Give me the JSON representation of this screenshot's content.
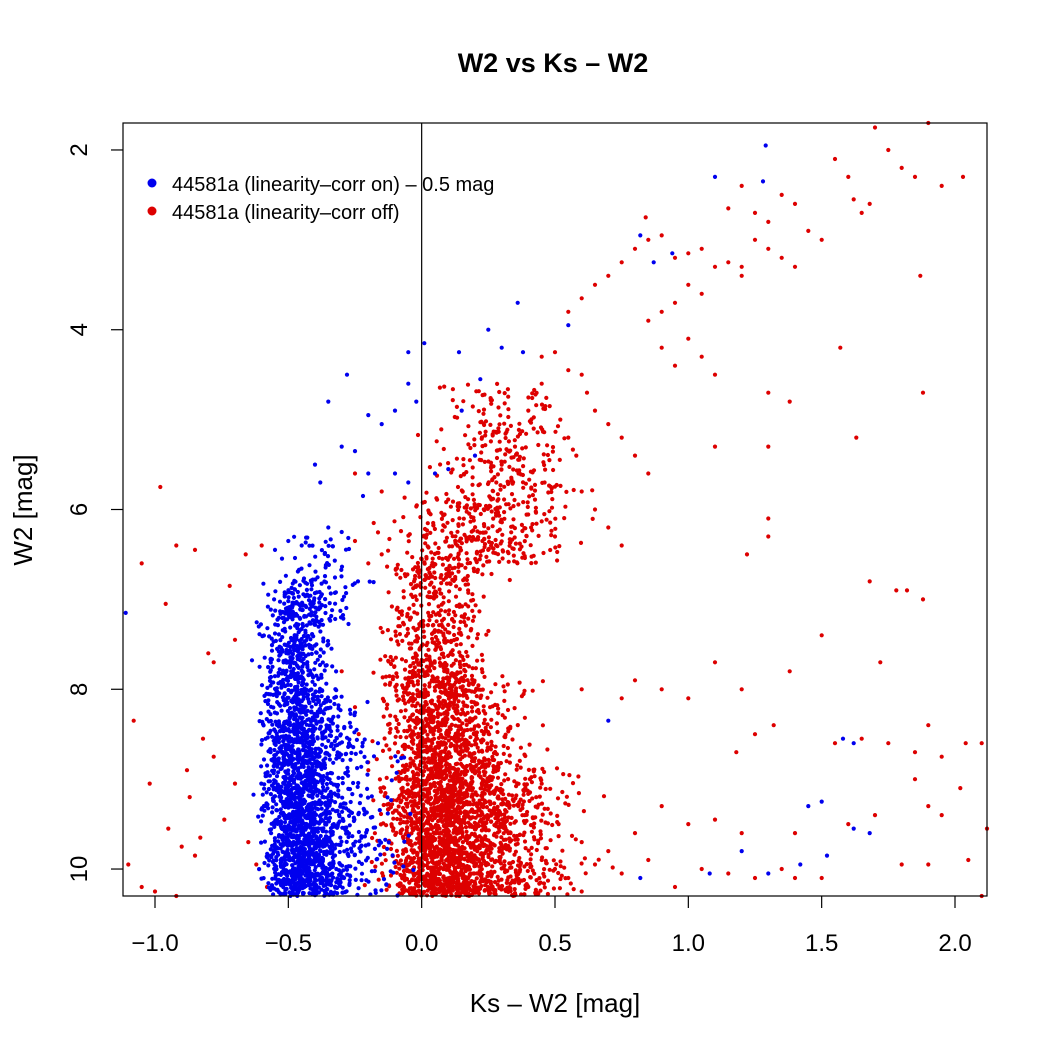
{
  "chart_data": {
    "type": "scatter",
    "title": "W2 vs Ks – W2",
    "xlabel": "Ks – W2 [mag]",
    "ylabel": "W2 [mag]",
    "xlim": [
      -1.12,
      2.12
    ],
    "ylim": [
      10.3,
      1.7
    ],
    "y_inverted": true,
    "x_ticks": [
      -1.0,
      -0.5,
      0.0,
      0.5,
      1.0,
      1.5,
      2.0
    ],
    "x_tick_labels": [
      "−1.0",
      "−0.5",
      "0.0",
      "0.5",
      "1.0",
      "1.5",
      "2.0"
    ],
    "y_ticks": [
      2,
      4,
      6,
      8,
      10
    ],
    "y_tick_labels": [
      "2",
      "4",
      "6",
      "8",
      "10"
    ],
    "reference_line_x": 0.0,
    "grid": false,
    "legend_position": "top-left",
    "series": [
      {
        "name": "44581a (linearity–corr on) – 0.5 mag",
        "color": "#0000ee",
        "points": [
          [
            -1.11,
            7.15
          ],
          [
            1.1,
            2.3
          ],
          [
            1.29,
            1.95
          ],
          [
            1.28,
            2.35
          ],
          [
            0.82,
            2.95
          ],
          [
            0.87,
            3.25
          ],
          [
            0.94,
            3.15
          ],
          [
            0.36,
            3.7
          ],
          [
            0.55,
            3.95
          ],
          [
            0.25,
            4.0
          ],
          [
            -0.05,
            4.25
          ],
          [
            0.01,
            4.15
          ],
          [
            0.14,
            4.25
          ],
          [
            0.22,
            4.55
          ],
          [
            0.38,
            4.25
          ],
          [
            0.3,
            4.2
          ],
          [
            -0.28,
            4.5
          ],
          [
            -0.35,
            4.8
          ],
          [
            -0.05,
            4.6
          ],
          [
            -0.02,
            4.8
          ],
          [
            0.15,
            4.9
          ],
          [
            0.2,
            5.4
          ],
          [
            0.05,
            5.6
          ],
          [
            0.1,
            5.55
          ],
          [
            -0.2,
            4.95
          ],
          [
            -0.15,
            5.05
          ],
          [
            -0.1,
            4.9
          ],
          [
            -0.3,
            5.3
          ],
          [
            -0.25,
            5.35
          ],
          [
            -0.4,
            5.5
          ],
          [
            -0.38,
            5.7
          ],
          [
            -0.2,
            5.6
          ],
          [
            -0.1,
            5.6
          ],
          [
            -0.05,
            5.7
          ],
          [
            -0.22,
            5.85
          ],
          [
            -0.45,
            6.4
          ],
          [
            -0.5,
            6.35
          ],
          [
            -0.55,
            6.45
          ],
          [
            -0.35,
            6.2
          ],
          [
            -0.3,
            6.25
          ],
          [
            0.7,
            8.35
          ],
          [
            1.58,
            8.55
          ],
          [
            1.62,
            8.6
          ],
          [
            1.45,
            9.3
          ],
          [
            1.5,
            9.25
          ],
          [
            1.62,
            9.55
          ],
          [
            1.68,
            9.6
          ],
          [
            1.52,
            9.85
          ],
          [
            1.42,
            9.95
          ],
          [
            1.2,
            9.8
          ],
          [
            1.08,
            10.05
          ],
          [
            1.3,
            10.05
          ],
          [
            0.82,
            10.1
          ]
        ]
      },
      {
        "name": "44581a (linearity–corr off)",
        "color": "#dd0000",
        "points": [
          [
            -1.05,
            6.6
          ],
          [
            -0.98,
            5.75
          ],
          [
            -0.92,
            6.4
          ],
          [
            -0.85,
            6.45
          ],
          [
            -0.8,
            7.6
          ],
          [
            -0.78,
            7.7
          ],
          [
            -0.7,
            7.45
          ],
          [
            -0.72,
            6.85
          ],
          [
            -0.66,
            6.5
          ],
          [
            -0.6,
            6.4
          ],
          [
            -1.08,
            8.35
          ],
          [
            -1.02,
            9.05
          ],
          [
            -0.96,
            7.05
          ],
          [
            -0.88,
            8.9
          ],
          [
            -0.82,
            8.55
          ],
          [
            -0.78,
            8.75
          ],
          [
            -0.74,
            9.45
          ],
          [
            -0.7,
            9.05
          ],
          [
            -0.95,
            9.55
          ],
          [
            -0.9,
            9.75
          ],
          [
            -0.85,
            9.85
          ],
          [
            -1.1,
            9.95
          ],
          [
            -1.05,
            10.2
          ],
          [
            -1.0,
            10.25
          ],
          [
            -0.92,
            10.3
          ],
          [
            -0.87,
            9.2
          ],
          [
            -0.83,
            9.65
          ],
          [
            -0.65,
            9.7
          ],
          [
            -0.62,
            9.95
          ],
          [
            -0.58,
            10.2
          ],
          [
            -0.25,
            6.35
          ],
          [
            -0.2,
            6.6
          ],
          [
            -0.15,
            6.5
          ],
          [
            -0.25,
            5.6
          ],
          [
            -0.15,
            5.8
          ],
          [
            -0.18,
            6.15
          ],
          [
            -0.3,
            7.8
          ],
          [
            -0.25,
            8.2
          ],
          [
            -0.2,
            8.9
          ],
          [
            -0.1,
            9.35
          ],
          [
            0.45,
            4.3
          ],
          [
            0.5,
            4.25
          ],
          [
            0.55,
            4.45
          ],
          [
            0.6,
            4.5
          ],
          [
            0.62,
            4.7
          ],
          [
            0.65,
            4.9
          ],
          [
            0.7,
            5.05
          ],
          [
            0.75,
            5.2
          ],
          [
            0.8,
            5.4
          ],
          [
            0.85,
            5.6
          ],
          [
            0.45,
            4.6
          ],
          [
            0.48,
            4.85
          ],
          [
            0.52,
            5.0
          ],
          [
            0.55,
            5.2
          ],
          [
            0.58,
            5.4
          ],
          [
            0.4,
            4.9
          ],
          [
            0.42,
            5.1
          ],
          [
            0.35,
            5.3
          ],
          [
            0.3,
            5.5
          ],
          [
            0.28,
            5.7
          ],
          [
            0.6,
            5.8
          ],
          [
            0.65,
            6.0
          ],
          [
            0.7,
            6.2
          ],
          [
            0.75,
            6.4
          ],
          [
            0.5,
            6.3
          ],
          [
            0.55,
            3.8
          ],
          [
            0.6,
            3.65
          ],
          [
            0.65,
            3.5
          ],
          [
            0.7,
            3.4
          ],
          [
            0.75,
            3.25
          ],
          [
            0.8,
            3.1
          ],
          [
            0.85,
            3.0
          ],
          [
            0.9,
            2.95
          ],
          [
            0.84,
            2.75
          ],
          [
            0.95,
            3.2
          ],
          [
            1.0,
            3.15
          ],
          [
            1.05,
            3.1
          ],
          [
            1.1,
            3.3
          ],
          [
            1.15,
            3.25
          ],
          [
            1.2,
            3.4
          ],
          [
            1.0,
            3.5
          ],
          [
            1.05,
            3.6
          ],
          [
            0.95,
            3.7
          ],
          [
            0.9,
            3.8
          ],
          [
            0.85,
            3.9
          ],
          [
            1.15,
            2.65
          ],
          [
            1.2,
            2.4
          ],
          [
            1.25,
            2.7
          ],
          [
            1.3,
            2.8
          ],
          [
            1.35,
            2.5
          ],
          [
            1.4,
            2.6
          ],
          [
            1.45,
            2.9
          ],
          [
            1.5,
            3.0
          ],
          [
            1.55,
            2.1
          ],
          [
            1.6,
            2.3
          ],
          [
            1.62,
            2.55
          ],
          [
            1.65,
            2.7
          ],
          [
            1.7,
            1.75
          ],
          [
            1.75,
            2.0
          ],
          [
            1.8,
            2.2
          ],
          [
            1.85,
            2.3
          ],
          [
            1.9,
            1.7
          ],
          [
            1.95,
            2.4
          ],
          [
            2.03,
            2.3
          ],
          [
            1.68,
            2.6
          ],
          [
            1.25,
            3.0
          ],
          [
            1.3,
            3.1
          ],
          [
            1.2,
            3.3
          ],
          [
            1.35,
            3.2
          ],
          [
            1.4,
            3.3
          ],
          [
            1.0,
            4.1
          ],
          [
            1.05,
            4.3
          ],
          [
            1.1,
            4.5
          ],
          [
            0.95,
            4.4
          ],
          [
            0.9,
            4.2
          ],
          [
            1.3,
            4.7
          ],
          [
            1.38,
            4.8
          ],
          [
            1.57,
            4.2
          ],
          [
            1.88,
            4.7
          ],
          [
            1.87,
            3.4
          ],
          [
            1.1,
            5.3
          ],
          [
            1.3,
            5.3
          ],
          [
            1.63,
            5.2
          ],
          [
            1.3,
            6.3
          ],
          [
            1.3,
            6.1
          ],
          [
            1.22,
            6.5
          ],
          [
            1.68,
            6.8
          ],
          [
            1.78,
            6.9
          ],
          [
            1.82,
            6.9
          ],
          [
            1.88,
            7.0
          ],
          [
            1.5,
            7.4
          ],
          [
            1.72,
            7.7
          ],
          [
            1.38,
            7.8
          ],
          [
            1.2,
            8.0
          ],
          [
            1.1,
            7.7
          ],
          [
            0.9,
            8.0
          ],
          [
            0.8,
            7.9
          ],
          [
            0.75,
            8.1
          ],
          [
            1.0,
            8.1
          ],
          [
            0.6,
            8.0
          ],
          [
            1.18,
            8.7
          ],
          [
            1.25,
            8.5
          ],
          [
            1.32,
            8.4
          ],
          [
            1.55,
            8.6
          ],
          [
            1.65,
            8.55
          ],
          [
            1.85,
            8.7
          ],
          [
            1.9,
            8.4
          ],
          [
            1.95,
            8.75
          ],
          [
            2.04,
            8.6
          ],
          [
            2.1,
            8.6
          ],
          [
            1.75,
            8.6
          ],
          [
            1.85,
            9.0
          ],
          [
            1.9,
            9.3
          ],
          [
            1.95,
            9.4
          ],
          [
            2.02,
            9.1
          ],
          [
            1.7,
            9.4
          ],
          [
            1.6,
            9.5
          ],
          [
            1.4,
            9.6
          ],
          [
            1.2,
            9.6
          ],
          [
            1.1,
            9.45
          ],
          [
            1.0,
            9.5
          ],
          [
            0.9,
            9.3
          ],
          [
            0.8,
            9.6
          ],
          [
            0.7,
            9.8
          ],
          [
            0.6,
            9.7
          ],
          [
            1.5,
            10.1
          ],
          [
            1.4,
            10.1
          ],
          [
            1.35,
            10.0
          ],
          [
            1.8,
            9.95
          ],
          [
            1.9,
            9.95
          ],
          [
            2.05,
            9.9
          ],
          [
            2.12,
            9.55
          ],
          [
            1.25,
            10.1
          ],
          [
            1.15,
            10.05
          ],
          [
            1.05,
            10.0
          ],
          [
            0.95,
            10.2
          ],
          [
            0.85,
            9.9
          ],
          [
            0.75,
            10.05
          ],
          [
            0.65,
            9.95
          ],
          [
            0.6,
            10.25
          ],
          [
            0.55,
            10.1
          ],
          [
            0.5,
            10.0
          ],
          [
            0.45,
            9.9
          ],
          [
            0.4,
            10.2
          ],
          [
            2.1,
            10.3
          ]
        ],
        "clusters": [
          {
            "x_center": 0.05,
            "x_spread": 0.09,
            "y_min": 6.6,
            "y_max": 10.3,
            "n": 1600
          },
          {
            "x_center": 0.15,
            "x_spread": 0.12,
            "y_min": 7.8,
            "y_max": 10.3,
            "n": 1100
          },
          {
            "x_center": 0.3,
            "x_spread": 0.15,
            "y_min": 8.8,
            "y_max": 10.3,
            "n": 500
          },
          {
            "x_center": 0.3,
            "x_spread": 0.12,
            "y_min": 4.6,
            "y_max": 6.6,
            "n": 420
          },
          {
            "x_center": 0.1,
            "x_spread": 0.1,
            "y_min": 5.8,
            "y_max": 6.8,
            "n": 160
          }
        ]
      }
    ],
    "blue_clusters": [
      {
        "x_center": -0.47,
        "x_spread": 0.06,
        "y_min": 6.8,
        "y_max": 10.3,
        "n": 1500
      },
      {
        "x_center": -0.4,
        "x_spread": 0.08,
        "y_min": 8.0,
        "y_max": 10.3,
        "n": 700
      },
      {
        "x_center": -0.38,
        "x_spread": 0.07,
        "y_min": 6.3,
        "y_max": 7.3,
        "n": 120
      },
      {
        "x_center": -0.25,
        "x_spread": 0.1,
        "y_min": 8.5,
        "y_max": 10.3,
        "n": 180
      }
    ]
  }
}
